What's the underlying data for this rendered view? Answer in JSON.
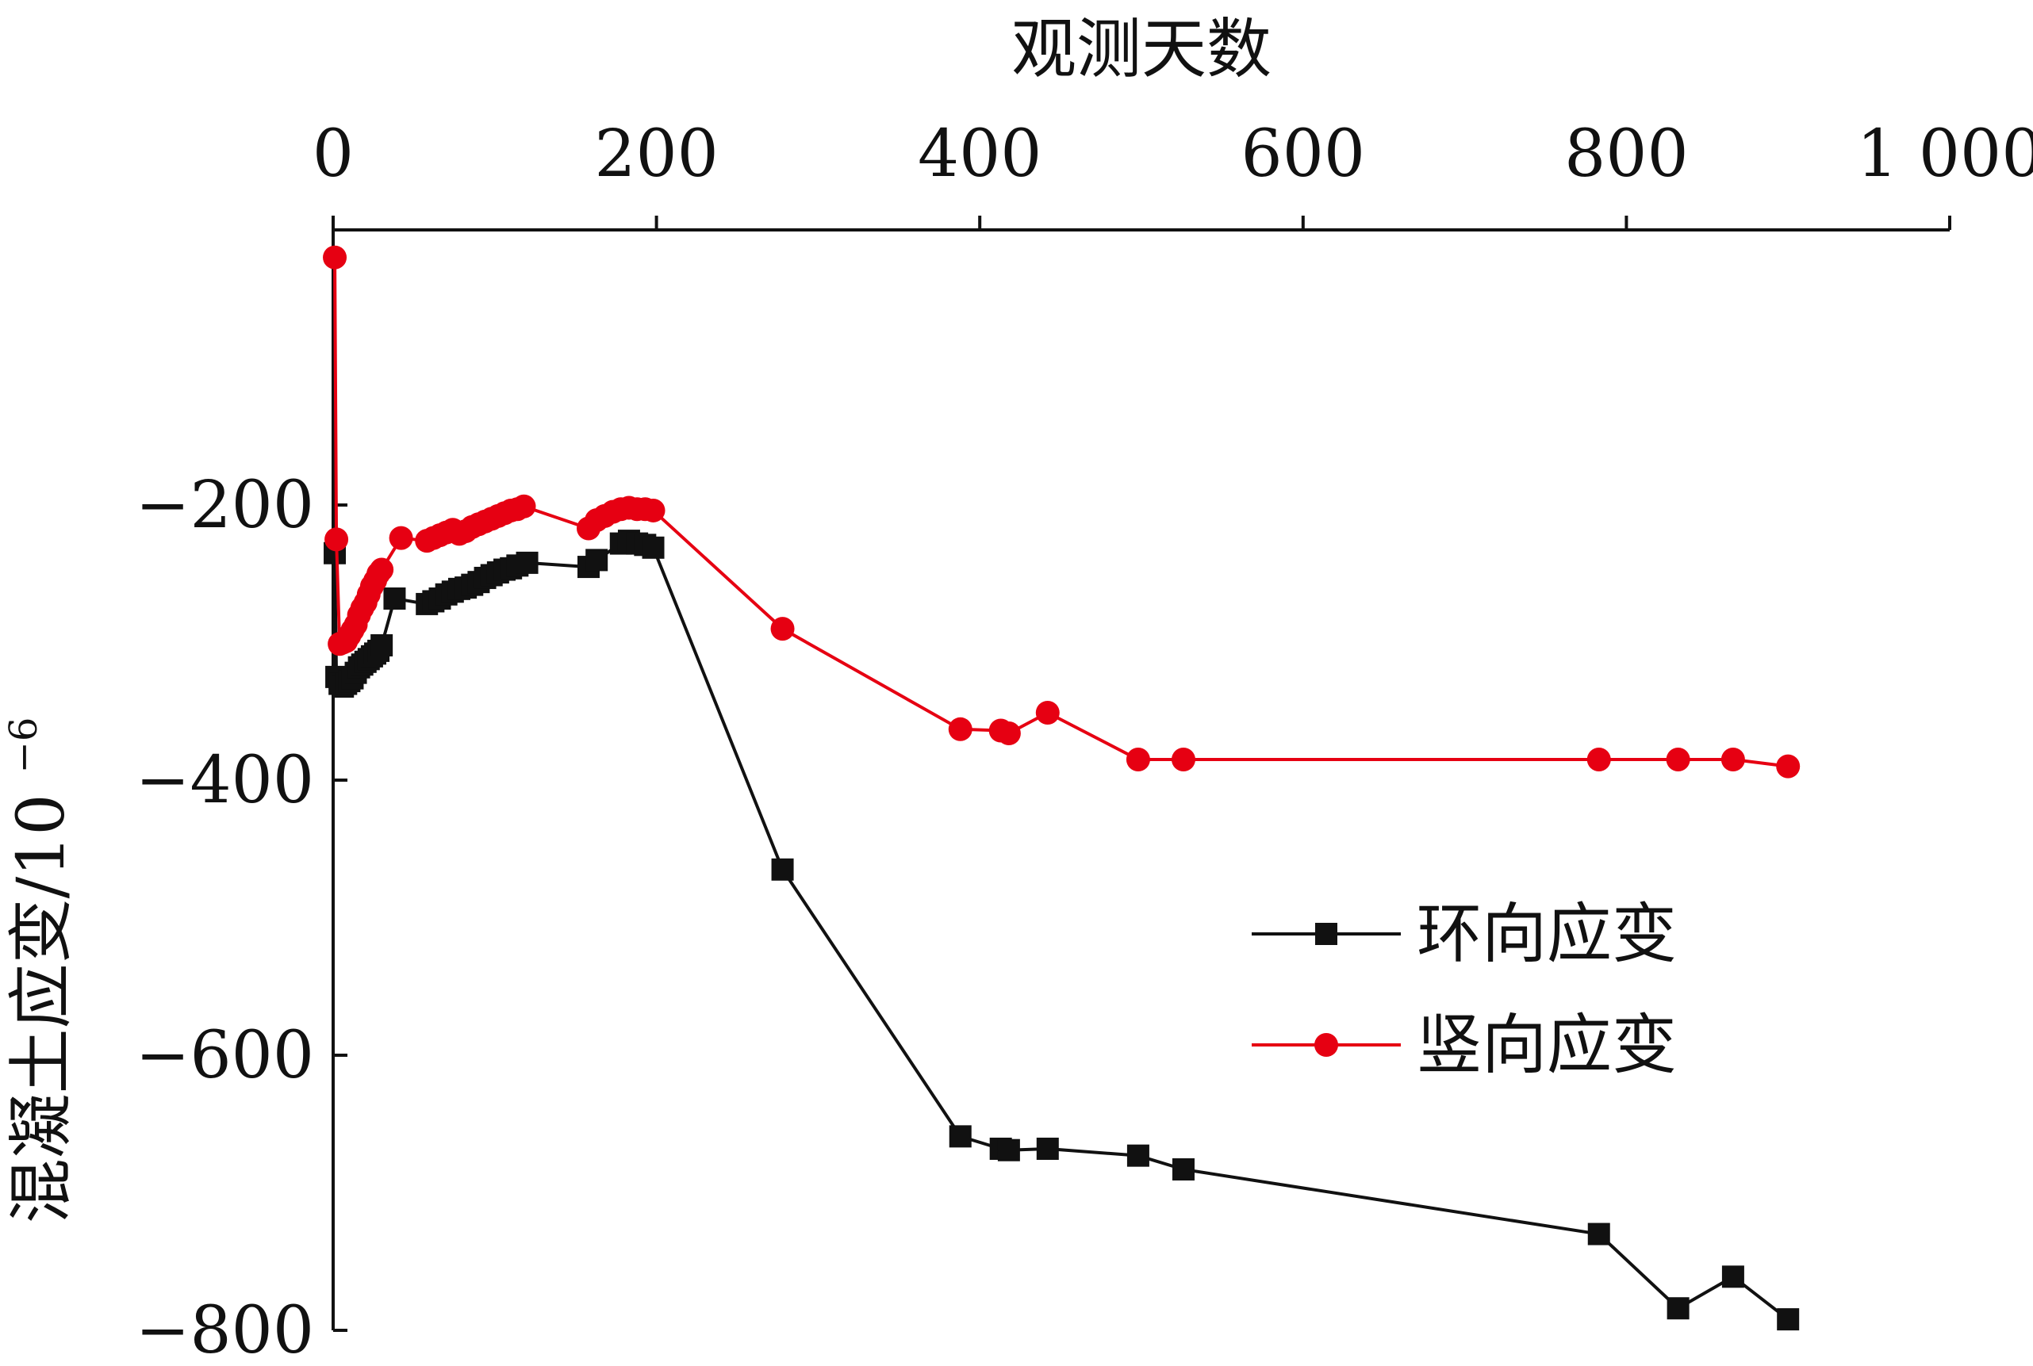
{
  "chart_data": {
    "type": "line",
    "title": "",
    "xlabel": "观测天数",
    "ylabel": "混凝土应变/10",
    "ylabel_superscript": "−6",
    "x_axis_position": "top",
    "xlim": [
      0,
      1000
    ],
    "ylim": [
      -800,
      0
    ],
    "x_ticks": [
      0,
      200,
      400,
      600,
      800,
      1000
    ],
    "x_tick_labels": [
      "0",
      "200",
      "400",
      "600",
      "800",
      "1 000"
    ],
    "y_ticks": [
      -200,
      -400,
      -600,
      -800
    ],
    "y_tick_labels": [
      "−200",
      "−400",
      "−600",
      "−800"
    ],
    "grid": false,
    "legend_position": "lower-right",
    "series": [
      {
        "name": "环向应变",
        "color": "#111111",
        "marker": "square",
        "points": [
          [
            1,
            -235
          ],
          [
            2,
            -325
          ],
          [
            4,
            -330
          ],
          [
            6,
            -332
          ],
          [
            8,
            -330
          ],
          [
            10,
            -328
          ],
          [
            12,
            -326
          ],
          [
            14,
            -322
          ],
          [
            16,
            -318
          ],
          [
            18,
            -316
          ],
          [
            20,
            -314
          ],
          [
            22,
            -312
          ],
          [
            24,
            -310
          ],
          [
            26,
            -308
          ],
          [
            28,
            -306
          ],
          [
            30,
            -302
          ],
          [
            38,
            -268
          ],
          [
            58,
            -272
          ],
          [
            62,
            -270
          ],
          [
            66,
            -268
          ],
          [
            70,
            -265
          ],
          [
            74,
            -263
          ],
          [
            78,
            -261
          ],
          [
            82,
            -260
          ],
          [
            86,
            -258
          ],
          [
            90,
            -256
          ],
          [
            94,
            -253
          ],
          [
            98,
            -251
          ],
          [
            102,
            -249
          ],
          [
            106,
            -247
          ],
          [
            110,
            -246
          ],
          [
            114,
            -244
          ],
          [
            120,
            -242
          ],
          [
            158,
            -245
          ],
          [
            163,
            -240
          ],
          [
            178,
            -228
          ],
          [
            183,
            -226
          ],
          [
            188,
            -228
          ],
          [
            193,
            -229
          ],
          [
            198,
            -231
          ],
          [
            278,
            -465
          ],
          [
            388,
            -659
          ],
          [
            413,
            -668
          ],
          [
            418,
            -669
          ],
          [
            442,
            -668
          ],
          [
            498,
            -673
          ],
          [
            526,
            -683
          ],
          [
            783,
            -730
          ],
          [
            832,
            -784
          ],
          [
            866,
            -761
          ],
          [
            900,
            -792
          ]
        ]
      },
      {
        "name": "竖向应变",
        "color": "#e60012",
        "marker": "circle",
        "points": [
          [
            1,
            -20
          ],
          [
            2,
            -225
          ],
          [
            4,
            -301
          ],
          [
            6,
            -300
          ],
          [
            8,
            -299
          ],
          [
            10,
            -295
          ],
          [
            12,
            -291
          ],
          [
            14,
            -287
          ],
          [
            16,
            -280
          ],
          [
            18,
            -275
          ],
          [
            20,
            -271
          ],
          [
            22,
            -265
          ],
          [
            24,
            -259
          ],
          [
            26,
            -255
          ],
          [
            28,
            -250
          ],
          [
            30,
            -247
          ],
          [
            42,
            -224
          ],
          [
            58,
            -226
          ],
          [
            62,
            -224
          ],
          [
            66,
            -222
          ],
          [
            70,
            -220
          ],
          [
            74,
            -218
          ],
          [
            78,
            -221
          ],
          [
            82,
            -219
          ],
          [
            86,
            -216
          ],
          [
            90,
            -214
          ],
          [
            94,
            -212
          ],
          [
            98,
            -210
          ],
          [
            102,
            -208
          ],
          [
            106,
            -206
          ],
          [
            110,
            -204
          ],
          [
            114,
            -203
          ],
          [
            118,
            -201
          ],
          [
            158,
            -217
          ],
          [
            163,
            -211
          ],
          [
            168,
            -208
          ],
          [
            173,
            -205
          ],
          [
            178,
            -203
          ],
          [
            183,
            -202
          ],
          [
            188,
            -203
          ],
          [
            193,
            -203
          ],
          [
            198,
            -204
          ],
          [
            278,
            -290
          ],
          [
            388,
            -363
          ],
          [
            413,
            -364
          ],
          [
            418,
            -366
          ],
          [
            442,
            -351
          ],
          [
            498,
            -385
          ],
          [
            526,
            -385
          ],
          [
            783,
            -385
          ],
          [
            832,
            -385
          ],
          [
            866,
            -385
          ],
          [
            900,
            -390
          ]
        ]
      }
    ]
  }
}
